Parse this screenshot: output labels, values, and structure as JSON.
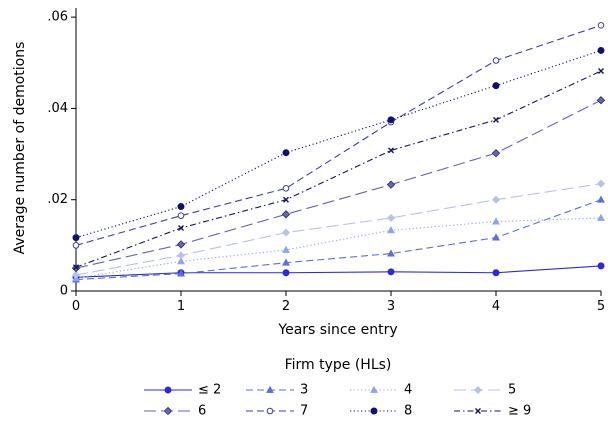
{
  "chart_data": {
    "type": "line",
    "xlabel": "Years since entry",
    "ylabel": "Average number of demotions",
    "x": [
      0,
      1,
      2,
      3,
      4,
      5
    ],
    "xlim": [
      0,
      5
    ],
    "ylim": [
      0,
      0.062
    ],
    "xticks": [
      0,
      1,
      2,
      3,
      4,
      5
    ],
    "xtick_labels": [
      "0",
      "1",
      "2",
      "3",
      "4",
      "5"
    ],
    "yticks": [
      0,
      0.02,
      0.04,
      0.06
    ],
    "ytick_labels": [
      "0",
      ".02",
      ".04",
      ".06"
    ],
    "grid": false,
    "legend_title": "Firm type (HLs)",
    "legend_position": "bottom",
    "series": [
      {
        "name": "≤ 2",
        "values": [
          0.003,
          0.004,
          0.004,
          0.0042,
          0.004,
          0.0055
        ],
        "color": "#2b2bd9",
        "dash": "solid",
        "marker": "circle-filled"
      },
      {
        "name": "3",
        "values": [
          0.0025,
          0.0038,
          0.0062,
          0.0082,
          0.0117,
          0.02
        ],
        "color": "#5a6ee0",
        "dash": "dashed",
        "marker": "triangle"
      },
      {
        "name": "4",
        "values": [
          0.0028,
          0.0065,
          0.009,
          0.0133,
          0.0152,
          0.016
        ],
        "color": "#8fa3ea",
        "dash": "dotted",
        "marker": "triangle"
      },
      {
        "name": "5",
        "values": [
          0.0035,
          0.0078,
          0.0128,
          0.016,
          0.02,
          0.0235
        ],
        "color": "#b9c1e8",
        "dash": "longdash",
        "marker": "diamond"
      },
      {
        "name": "6",
        "values": [
          0.005,
          0.0102,
          0.0168,
          0.0233,
          0.0302,
          0.0418
        ],
        "color": "#6466b2",
        "dash": "longdash",
        "marker": "diamond-filled"
      },
      {
        "name": "7",
        "values": [
          0.01,
          0.0165,
          0.0225,
          0.037,
          0.0505,
          0.0582
        ],
        "color": "#3e3f9e",
        "dash": "dashed",
        "marker": "circle-open"
      },
      {
        "name": "8",
        "values": [
          0.0117,
          0.0185,
          0.0303,
          0.0375,
          0.045,
          0.0527
        ],
        "color": "#101070",
        "dash": "dotted",
        "marker": "circle-filled"
      },
      {
        "name": "≥ 9",
        "values": [
          0.0052,
          0.0138,
          0.02,
          0.0308,
          0.0375,
          0.0482
        ],
        "color": "#151560",
        "dash": "dashdot",
        "marker": "x"
      }
    ]
  }
}
